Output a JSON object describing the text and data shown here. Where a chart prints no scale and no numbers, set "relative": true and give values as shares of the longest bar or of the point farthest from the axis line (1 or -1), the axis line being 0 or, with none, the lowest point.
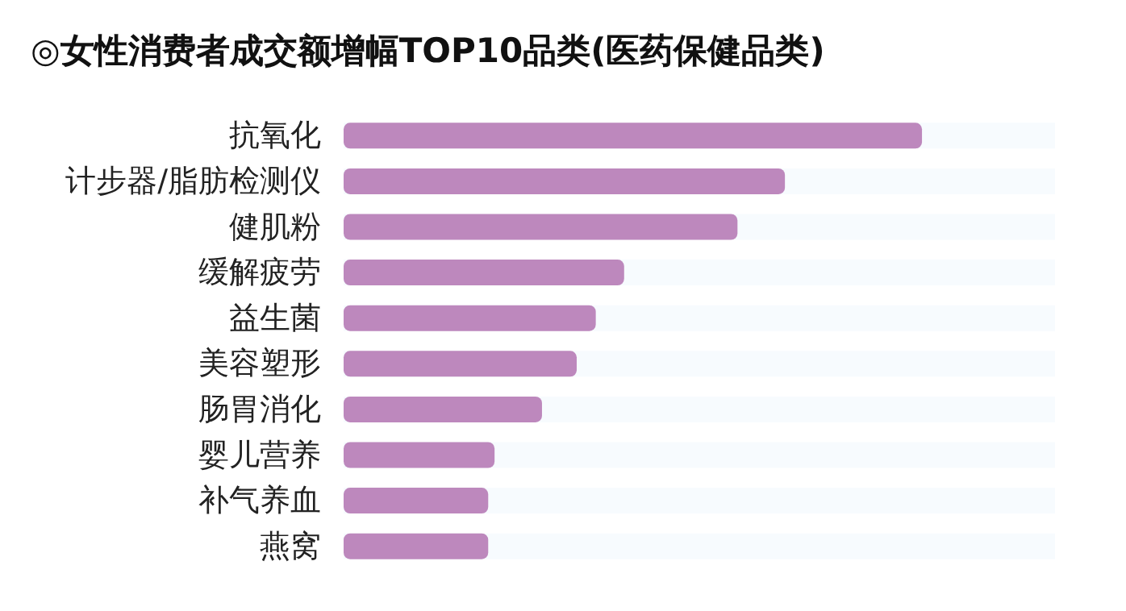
{
  "chart_data": {
    "type": "bar",
    "orientation": "horizontal",
    "relative": true,
    "title": "◎女性消费者成交额增幅TOP10品类(医药保健品类)",
    "categories": [
      "抗氧化",
      "计步器/脂肪检测仪",
      "健肌粉",
      "缓解疲劳",
      "益生菌",
      "美容塑形",
      "肠胃消化",
      "婴儿营养",
      "补气养血",
      "燕窝"
    ],
    "values": [
      1,
      0.763,
      0.681,
      0.485,
      0.436,
      0.403,
      0.343,
      0.261,
      0.25,
      0.25
    ],
    "color": "#bd88bd"
  }
}
